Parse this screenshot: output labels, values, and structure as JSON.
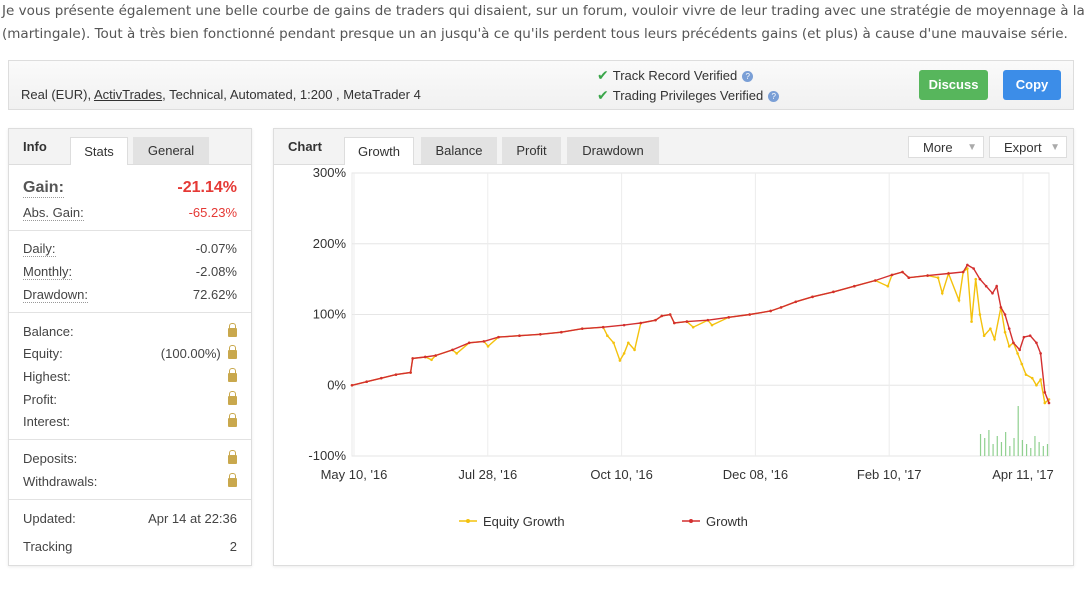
{
  "intro": {
    "line1": "Je vous présente également une belle courbe de gains de traders qui disaient, sur un forum, vouloir vivre de leur trading avec une stratégie de moyennage à la baisse",
    "line2": "(martingale). Tout à très bien fonctionné pendant presque un an jusqu'à ce qu'ils perdent tous leurs précédents gains (et plus) à cause d'une mauvaise série."
  },
  "header": {
    "acct_prefix": "Real (EUR), ",
    "broker": "ActivTrades",
    "acct_suffix": ", Technical, Automated, 1:200 , MetaTrader 4",
    "track_record": "Track Record Verified",
    "trading_privileges": "Trading Privileges Verified",
    "help_glyph": "?",
    "discuss": "Discuss",
    "copy": "Copy"
  },
  "info": {
    "title": "Info",
    "tabs": [
      "Stats",
      "General"
    ],
    "gain_label": "Gain:",
    "gain_value": "-21.14%",
    "abs_gain_label": "Abs. Gain:",
    "abs_gain_value": "-65.23%",
    "daily_label": "Daily:",
    "daily_value": "-0.07%",
    "monthly_label": "Monthly:",
    "monthly_value": "-2.08%",
    "drawdown_label": "Drawdown:",
    "drawdown_value": "72.62%",
    "balance_label": "Balance:",
    "equity_label": "Equity:",
    "equity_value": "(100.00%)",
    "highest_label": "Highest:",
    "profit_label": "Profit:",
    "interest_label": "Interest:",
    "deposits_label": "Deposits:",
    "withdrawals_label": "Withdrawals:",
    "updated_label": "Updated:",
    "updated_value": "Apr 14 at 22:36",
    "tracking_label": "Tracking",
    "tracking_value": "2",
    "lock_icon": "lock-icon"
  },
  "chart_panel": {
    "title": "Chart",
    "tabs": [
      "Growth",
      "Balance",
      "Profit",
      "Drawdown"
    ],
    "more": "More",
    "export": "Export"
  },
  "colors": {
    "growth": "#d32f2f",
    "equity": "#f4c20d",
    "gain": "#e53935",
    "discuss": "#57b65c",
    "copy": "#3c8de8",
    "volume": "#8fd08f"
  },
  "chart_data": {
    "type": "line",
    "x_ticks": [
      "May 10, '16",
      "Jul 28, '16",
      "Oct 10, '16",
      "Dec 08, '16",
      "Feb 10, '17",
      "Apr 11, '17"
    ],
    "y_ticks": [
      "300%",
      "200%",
      "100%",
      "0%",
      "-100%"
    ],
    "ylim": [
      -100,
      300
    ],
    "grid": true,
    "legend": "bottom",
    "series": [
      {
        "name": "Growth",
        "points": [
          [
            0,
            0
          ],
          [
            7,
            5
          ],
          [
            14,
            10
          ],
          [
            21,
            15
          ],
          [
            28,
            18
          ],
          [
            29,
            38
          ],
          [
            35,
            40
          ],
          [
            40,
            42
          ],
          [
            48,
            50
          ],
          [
            56,
            60
          ],
          [
            63,
            62
          ],
          [
            70,
            68
          ],
          [
            80,
            70
          ],
          [
            90,
            72
          ],
          [
            100,
            75
          ],
          [
            110,
            80
          ],
          [
            120,
            82
          ],
          [
            130,
            85
          ],
          [
            138,
            88
          ],
          [
            145,
            92
          ],
          [
            148,
            98
          ],
          [
            152,
            100
          ],
          [
            154,
            88
          ],
          [
            160,
            90
          ],
          [
            170,
            92
          ],
          [
            180,
            96
          ],
          [
            190,
            100
          ],
          [
            200,
            105
          ],
          [
            205,
            110
          ],
          [
            212,
            118
          ],
          [
            220,
            125
          ],
          [
            230,
            132
          ],
          [
            240,
            140
          ],
          [
            250,
            148
          ],
          [
            258,
            156
          ],
          [
            263,
            160
          ],
          [
            266,
            152
          ],
          [
            275,
            155
          ],
          [
            285,
            158
          ],
          [
            292,
            160
          ],
          [
            294,
            170
          ],
          [
            297,
            165
          ],
          [
            300,
            150
          ],
          [
            303,
            140
          ],
          [
            306,
            130
          ],
          [
            308,
            140
          ],
          [
            310,
            110
          ],
          [
            312,
            100
          ],
          [
            314,
            80
          ],
          [
            316,
            60
          ],
          [
            319,
            50
          ],
          [
            321,
            68
          ],
          [
            324,
            70
          ],
          [
            327,
            60
          ],
          [
            329,
            45
          ],
          [
            331,
            -10
          ],
          [
            333,
            -25
          ]
        ]
      },
      {
        "name": "Equity Growth",
        "points": [
          [
            0,
            0
          ],
          [
            7,
            5
          ],
          [
            14,
            10
          ],
          [
            21,
            15
          ],
          [
            28,
            18
          ],
          [
            29,
            38
          ],
          [
            35,
            40
          ],
          [
            38,
            36
          ],
          [
            40,
            42
          ],
          [
            48,
            50
          ],
          [
            50,
            45
          ],
          [
            56,
            60
          ],
          [
            63,
            62
          ],
          [
            65,
            55
          ],
          [
            70,
            68
          ],
          [
            80,
            70
          ],
          [
            90,
            72
          ],
          [
            100,
            75
          ],
          [
            110,
            80
          ],
          [
            120,
            82
          ],
          [
            122,
            70
          ],
          [
            125,
            60
          ],
          [
            128,
            35
          ],
          [
            130,
            45
          ],
          [
            132,
            60
          ],
          [
            135,
            50
          ],
          [
            138,
            88
          ],
          [
            145,
            92
          ],
          [
            148,
            98
          ],
          [
            152,
            100
          ],
          [
            154,
            88
          ],
          [
            160,
            90
          ],
          [
            163,
            82
          ],
          [
            170,
            92
          ],
          [
            172,
            85
          ],
          [
            180,
            96
          ],
          [
            190,
            100
          ],
          [
            200,
            105
          ],
          [
            205,
            110
          ],
          [
            212,
            118
          ],
          [
            220,
            125
          ],
          [
            230,
            132
          ],
          [
            240,
            140
          ],
          [
            250,
            148
          ],
          [
            256,
            140
          ],
          [
            258,
            156
          ],
          [
            263,
            160
          ],
          [
            266,
            152
          ],
          [
            275,
            155
          ],
          [
            280,
            152
          ],
          [
            282,
            130
          ],
          [
            285,
            158
          ],
          [
            290,
            120
          ],
          [
            292,
            160
          ],
          [
            294,
            165
          ],
          [
            296,
            90
          ],
          [
            298,
            150
          ],
          [
            300,
            100
          ],
          [
            302,
            70
          ],
          [
            305,
            80
          ],
          [
            307,
            65
          ],
          [
            310,
            110
          ],
          [
            312,
            75
          ],
          [
            314,
            55
          ],
          [
            316,
            60
          ],
          [
            318,
            45
          ],
          [
            320,
            30
          ],
          [
            322,
            15
          ],
          [
            325,
            10
          ],
          [
            327,
            0
          ],
          [
            329,
            8
          ],
          [
            331,
            -25
          ],
          [
            333,
            -20
          ]
        ]
      }
    ]
  }
}
